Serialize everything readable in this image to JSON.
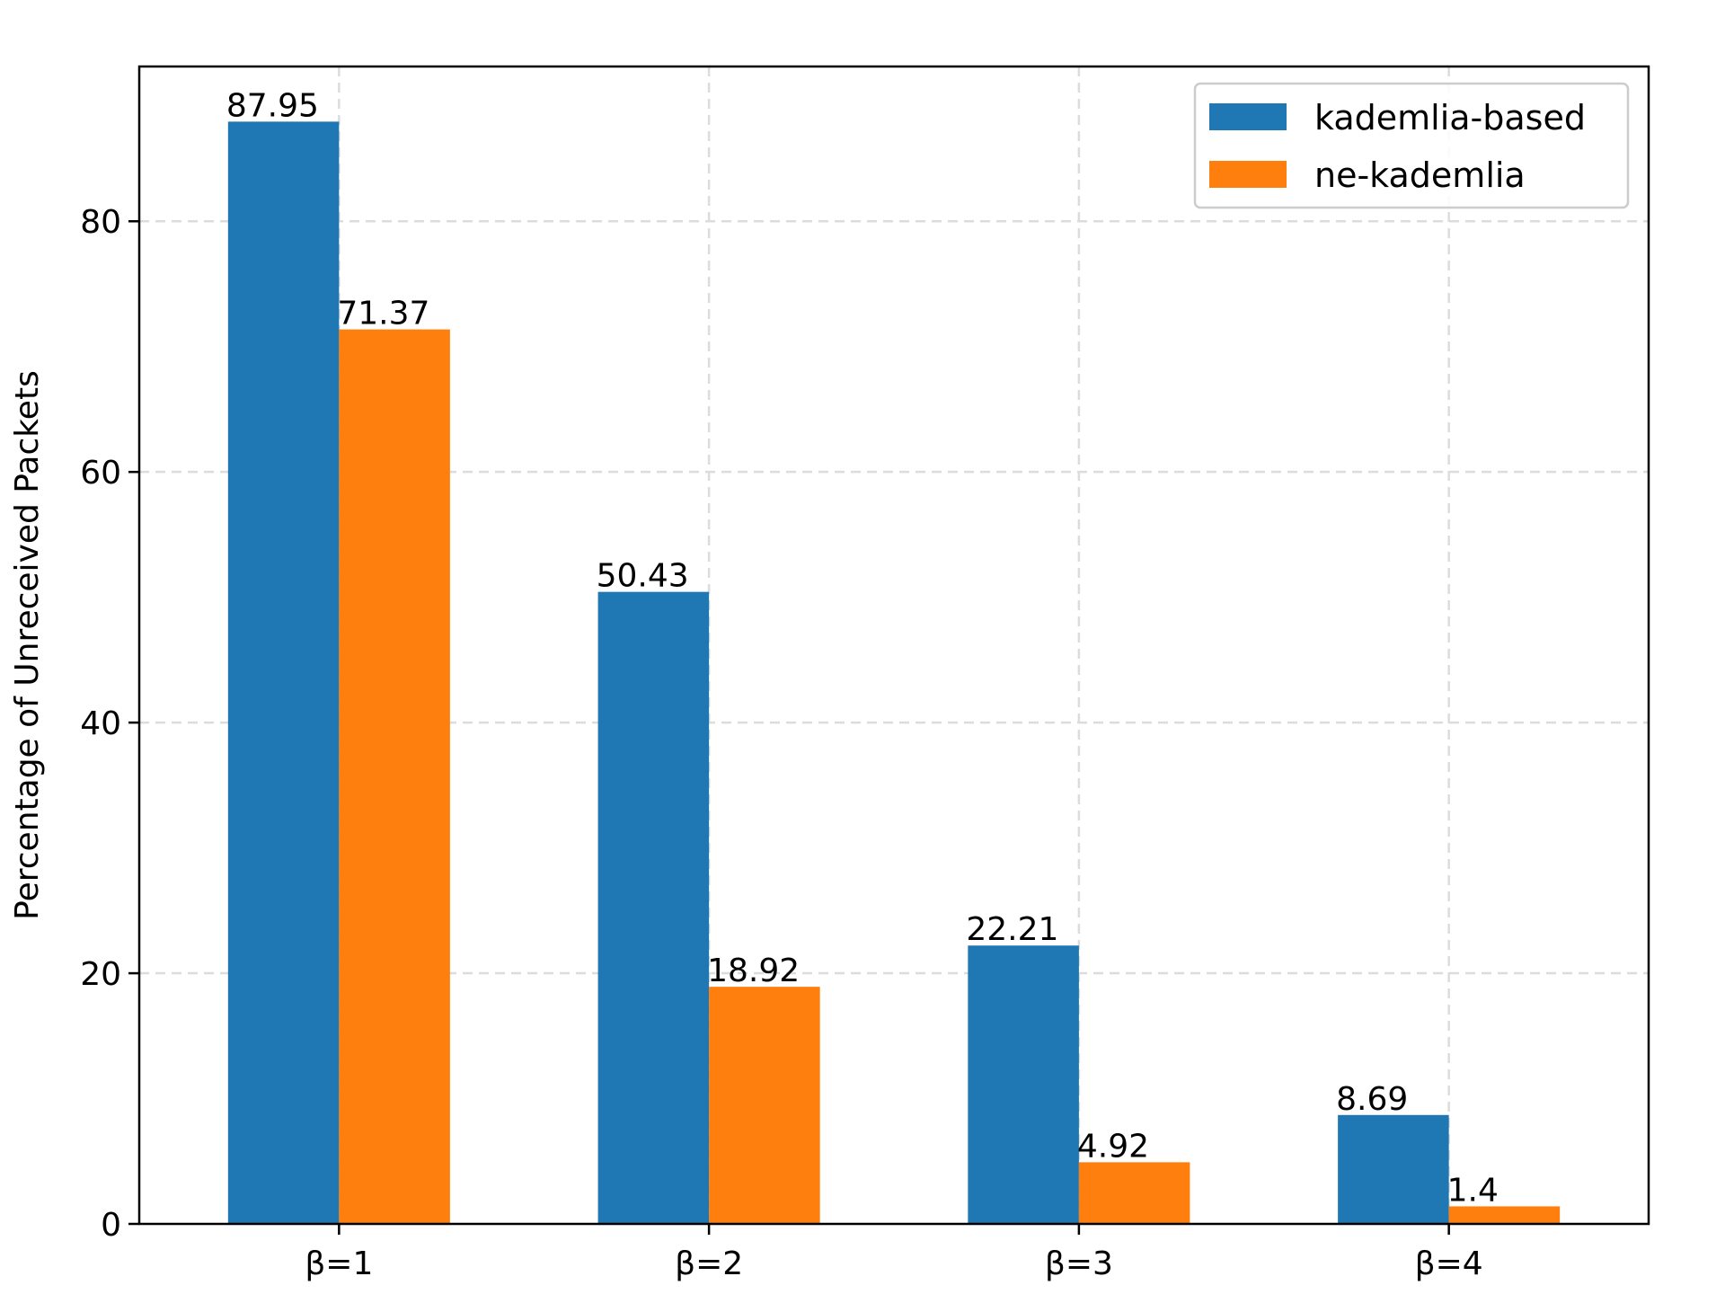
{
  "chart_data": {
    "type": "bar",
    "title": "",
    "xlabel": "",
    "ylabel": "Percentage of Unreceived Packets",
    "categories": [
      "β=1",
      "β=2",
      "β=3",
      "β=4"
    ],
    "series": [
      {
        "name": "kademlia-based",
        "color": "#1f77b4",
        "values": [
          87.95,
          50.43,
          22.21,
          8.69
        ],
        "labels": [
          "87.95",
          "50.43",
          "22.21",
          "8.69"
        ]
      },
      {
        "name": "ne-kademlia",
        "color": "#ff7f0e",
        "values": [
          71.37,
          18.92,
          4.92,
          1.4
        ],
        "labels": [
          "71.37",
          "18.92",
          "4.92",
          "1.4"
        ]
      }
    ],
    "ylim": [
      0,
      92.35
    ],
    "yticks": [
      0,
      20,
      40,
      60,
      80
    ],
    "ytick_labels": [
      "0",
      "20",
      "40",
      "60",
      "80"
    ],
    "grid": true,
    "legend_position": "upper right"
  }
}
